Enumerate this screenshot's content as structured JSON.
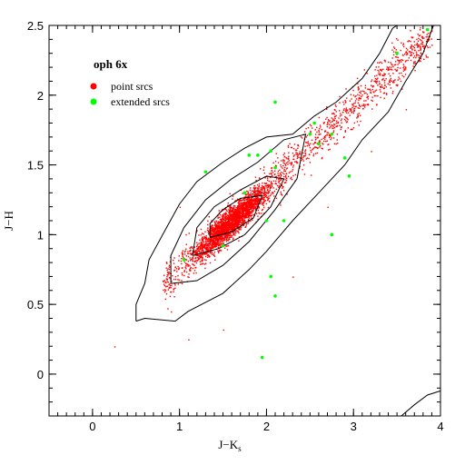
{
  "chart_data": {
    "type": "scatter",
    "title": "oph 6x",
    "xlabel": "J−K",
    "xlabel_sub": "s",
    "ylabel": "J−H",
    "xlim": [
      -0.5,
      4
    ],
    "ylim": [
      -0.3,
      2.5
    ],
    "xticks": [
      0,
      1,
      2,
      3,
      4
    ],
    "yticks": [
      0,
      0.5,
      1,
      1.5,
      2,
      2.5
    ],
    "xtick_labels": [
      "0",
      "1",
      "2",
      "3",
      "4"
    ],
    "ytick_labels": [
      "0",
      "0.5",
      "1",
      "1.5",
      "2",
      "2.5"
    ],
    "legend_position": "top-left",
    "grid": false,
    "series": [
      {
        "name": "point srcs",
        "color": "#ff0000",
        "marker": "dot",
        "trend": {
          "x_start": 0.8,
          "y_start": 0.65,
          "x_end": 3.9,
          "y_end": 2.45
        },
        "core": {
          "x": 1.6,
          "y": 1.1
        },
        "outliers": [
          [
            0.25,
            0.2
          ],
          [
            1.1,
            0.25
          ],
          [
            1.5,
            0.32
          ],
          [
            2.3,
            0.7
          ],
          [
            0.9,
            0.45
          ],
          [
            2.7,
            1.2
          ],
          [
            3.2,
            1.6
          ],
          [
            3.6,
            1.9
          ],
          [
            1.0,
            1.2
          ],
          [
            2.9,
            1.75
          ]
        ]
      },
      {
        "name": "extended srcs",
        "color": "#00ff00",
        "marker": "dot",
        "points": [
          [
            1.3,
            1.45
          ],
          [
            1.8,
            1.57
          ],
          [
            1.9,
            1.57
          ],
          [
            2.0,
            1.1
          ],
          [
            2.1,
            1.48
          ],
          [
            2.2,
            1.1
          ],
          [
            2.05,
            0.7
          ],
          [
            2.1,
            0.56
          ],
          [
            1.95,
            0.12
          ],
          [
            2.5,
            1.72
          ],
          [
            2.55,
            1.8
          ],
          [
            2.6,
            1.65
          ],
          [
            2.75,
            1.72
          ],
          [
            2.9,
            1.55
          ],
          [
            2.95,
            1.42
          ],
          [
            2.75,
            1.0
          ],
          [
            3.5,
            2.3
          ],
          [
            3.85,
            2.47
          ],
          [
            1.05,
            0.82
          ],
          [
            1.5,
            0.92
          ],
          [
            1.75,
            1.3
          ],
          [
            2.05,
            1.6
          ],
          [
            2.1,
            1.95
          ]
        ]
      }
    ],
    "contours": [
      {
        "level": "outer",
        "points": [
          [
            0.5,
            0.38
          ],
          [
            0.6,
            0.4
          ],
          [
            0.95,
            0.38
          ],
          [
            1.1,
            0.45
          ],
          [
            1.5,
            0.58
          ],
          [
            1.8,
            0.75
          ],
          [
            2.0,
            0.88
          ],
          [
            2.3,
            1.1
          ],
          [
            2.6,
            1.3
          ],
          [
            2.9,
            1.5
          ],
          [
            3.1,
            1.68
          ],
          [
            3.4,
            1.88
          ],
          [
            3.6,
            2.1
          ],
          [
            3.8,
            2.3
          ],
          [
            3.92,
            2.5
          ],
          [
            3.5,
            2.5
          ],
          [
            3.45,
            2.48
          ],
          [
            3.3,
            2.3
          ],
          [
            3.1,
            2.12
          ],
          [
            2.8,
            1.95
          ],
          [
            2.55,
            1.85
          ],
          [
            2.3,
            1.72
          ],
          [
            2.0,
            1.7
          ],
          [
            1.75,
            1.62
          ],
          [
            1.5,
            1.52
          ],
          [
            1.2,
            1.38
          ],
          [
            1.0,
            1.22
          ],
          [
            0.85,
            1.05
          ],
          [
            0.65,
            0.82
          ],
          [
            0.6,
            0.65
          ],
          [
            0.5,
            0.5
          ],
          [
            0.5,
            0.38
          ]
        ]
      },
      {
        "level": "mid",
        "points": [
          [
            0.9,
            0.65
          ],
          [
            1.2,
            0.67
          ],
          [
            1.5,
            0.78
          ],
          [
            1.8,
            0.95
          ],
          [
            2.1,
            1.18
          ],
          [
            2.35,
            1.4
          ],
          [
            2.45,
            1.72
          ],
          [
            2.2,
            1.68
          ],
          [
            1.9,
            1.52
          ],
          [
            1.6,
            1.4
          ],
          [
            1.3,
            1.25
          ],
          [
            1.05,
            1.05
          ],
          [
            0.9,
            0.85
          ],
          [
            0.9,
            0.65
          ]
        ]
      },
      {
        "level": "inner",
        "points": [
          [
            1.15,
            0.85
          ],
          [
            1.45,
            0.9
          ],
          [
            1.75,
            1.0
          ],
          [
            2.05,
            1.2
          ],
          [
            2.2,
            1.4
          ],
          [
            2.0,
            1.42
          ],
          [
            1.7,
            1.32
          ],
          [
            1.4,
            1.2
          ],
          [
            1.2,
            1.05
          ],
          [
            1.15,
            0.85
          ]
        ]
      },
      {
        "level": "core",
        "points": [
          [
            1.35,
            0.98
          ],
          [
            1.6,
            1.02
          ],
          [
            1.85,
            1.12
          ],
          [
            1.95,
            1.28
          ],
          [
            1.7,
            1.26
          ],
          [
            1.5,
            1.18
          ],
          [
            1.35,
            1.08
          ],
          [
            1.35,
            0.98
          ]
        ]
      },
      {
        "level": "corner",
        "points": [
          [
            3.55,
            -0.3
          ],
          [
            3.7,
            -0.22
          ],
          [
            3.85,
            -0.15
          ],
          [
            4.0,
            -0.12
          ]
        ]
      }
    ]
  }
}
